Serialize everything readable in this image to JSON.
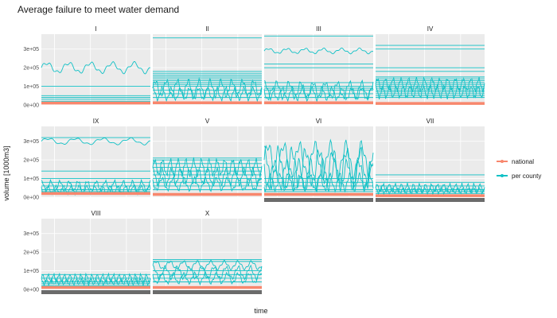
{
  "chart_data": {
    "type": "line",
    "title": "Average failure to meet water demand",
    "xlabel": "time",
    "ylabel": "volume [1000m3]",
    "ylim": [
      0,
      380000
    ],
    "y_ticks": [
      0,
      100000,
      200000,
      300000
    ],
    "y_tick_labels": [
      "0e+00",
      "1e+05",
      "2e+05",
      "3e+05"
    ],
    "x_ticks_note": "illegible overlapping date labels",
    "legend": {
      "position": "right",
      "entries": [
        "national",
        "per county"
      ]
    },
    "colors": {
      "national": "#F8876D",
      "per county": "#11C1C6",
      "panel_bg": "#EBEBEB",
      "grid": "#FFFFFF"
    },
    "grid": true,
    "facets": [
      {
        "name": "I",
        "per_county_flat": [
          10000,
          20000,
          30000,
          40000,
          50000,
          100000
        ],
        "per_county_wave": [
          [
            200000,
            25000,
            5
          ]
        ],
        "national": 10000
      },
      {
        "name": "II",
        "per_county_flat": [
          360000,
          180000,
          170000,
          160000,
          150000,
          140000,
          130000,
          120000,
          110000,
          100000,
          80000,
          60000,
          40000
        ],
        "per_county_wave": [
          [
            90000,
            40000,
            10
          ],
          [
            60000,
            30000,
            12
          ]
        ],
        "national": 12000
      },
      {
        "name": "III",
        "per_county_flat": [
          370000,
          220000,
          200000,
          120000,
          100000,
          90000,
          80000,
          60000,
          40000
        ],
        "per_county_wave": [
          [
            290000,
            12000,
            6
          ],
          [
            80000,
            40000,
            9
          ],
          [
            60000,
            30000,
            11
          ]
        ],
        "national": 12000
      },
      {
        "name": "IV",
        "per_county_flat": [
          320000,
          300000,
          200000,
          180000,
          150000,
          140000,
          130000,
          120000,
          110000,
          100000,
          90000,
          80000,
          70000,
          60000,
          50000,
          40000
        ],
        "per_county_wave": [
          [
            110000,
            30000,
            14
          ],
          [
            70000,
            30000,
            16
          ]
        ],
        "national": 8000
      },
      {
        "name": "IX",
        "per_county_flat": [
          320000,
          140000,
          100000,
          80000,
          60000,
          40000,
          30000
        ],
        "per_county_wave": [
          [
            300000,
            15000,
            4
          ],
          [
            60000,
            25000,
            12
          ],
          [
            40000,
            20000,
            14
          ]
        ],
        "national": 20000
      },
      {
        "name": "V",
        "per_county_flat": [
          210000,
          200000,
          180000,
          160000,
          140000,
          120000,
          100000,
          80000,
          60000,
          40000
        ],
        "per_county_wave": [
          [
            160000,
            40000,
            14
          ],
          [
            110000,
            40000,
            12
          ],
          [
            70000,
            30000,
            10
          ]
        ],
        "national": 15000
      },
      {
        "name": "VI",
        "per_county_flat": [
          100000,
          80000,
          60000,
          40000,
          30000,
          20000
        ],
        "per_county_wave": [
          [
            200000,
            80000,
            7
          ],
          [
            160000,
            90000,
            8
          ],
          [
            120000,
            70000,
            9
          ],
          [
            80000,
            40000,
            11
          ]
        ],
        "national": 15000
      },
      {
        "name": "VII",
        "per_county_flat": [
          120000,
          80000,
          60000,
          40000,
          30000,
          20000
        ],
        "per_county_wave": [
          [
            50000,
            20000,
            18
          ],
          [
            35000,
            15000,
            20
          ]
        ],
        "national": 8000
      },
      {
        "name": "VIII",
        "per_county_flat": [
          80000,
          60000,
          40000,
          30000,
          20000
        ],
        "per_county_wave": [
          [
            60000,
            20000,
            20
          ],
          [
            40000,
            15000,
            22
          ]
        ],
        "national": 10000
      },
      {
        "name": "X",
        "per_county_flat": [
          160000,
          150000,
          100000,
          80000,
          60000,
          40000
        ],
        "per_county_wave": [
          [
            130000,
            20000,
            8
          ],
          [
            90000,
            30000,
            9
          ],
          [
            60000,
            25000,
            10
          ]
        ],
        "national": 10000
      }
    ]
  }
}
